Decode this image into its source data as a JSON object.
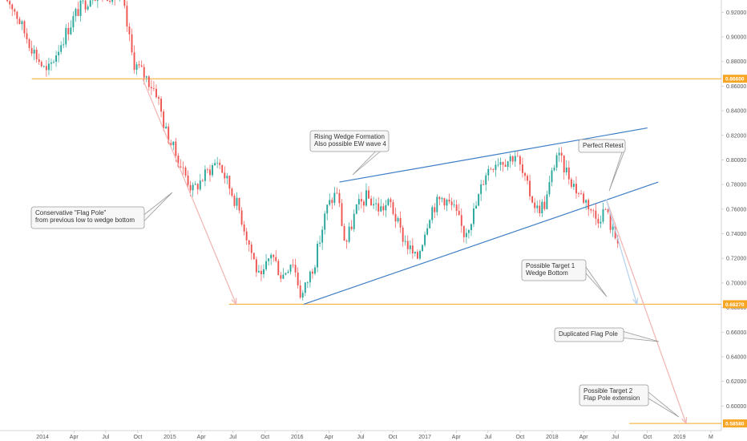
{
  "chart_data": {
    "type": "candlestick",
    "y_axis": {
      "position": "right",
      "range": [
        0.58,
        0.93
      ],
      "ticks": [
        "0.92000",
        "0.90000",
        "0.88000",
        "0.86000",
        "0.84000",
        "0.82000",
        "0.80000",
        "0.78000",
        "0.76000",
        "0.74000",
        "0.72000",
        "0.70000",
        "0.68000",
        "0.66000",
        "0.64000",
        "0.62000",
        "0.60000",
        "0.58000"
      ]
    },
    "x_axis": {
      "range": [
        "2013-09-01",
        "2019-05-01"
      ],
      "ticks": [
        {
          "label": "2014",
          "date": "2014-01-01"
        },
        {
          "label": "Apr",
          "date": "2014-04-01"
        },
        {
          "label": "Jul",
          "date": "2014-07-01"
        },
        {
          "label": "Oct",
          "date": "2014-10-01"
        },
        {
          "label": "2015",
          "date": "2015-01-01"
        },
        {
          "label": "Apr",
          "date": "2015-04-01"
        },
        {
          "label": "Jul",
          "date": "2015-07-01"
        },
        {
          "label": "Oct",
          "date": "2015-10-01"
        },
        {
          "label": "2016",
          "date": "2016-01-01"
        },
        {
          "label": "Apr",
          "date": "2016-04-01"
        },
        {
          "label": "Jul",
          "date": "2016-07-01"
        },
        {
          "label": "Oct",
          "date": "2016-10-01"
        },
        {
          "label": "2017",
          "date": "2017-01-01"
        },
        {
          "label": "Apr",
          "date": "2017-04-01"
        },
        {
          "label": "Jul",
          "date": "2017-07-01"
        },
        {
          "label": "Oct",
          "date": "2017-10-01"
        },
        {
          "label": "2018",
          "date": "2018-01-01"
        },
        {
          "label": "Apr",
          "date": "2018-04-01"
        },
        {
          "label": "Jul",
          "date": "2018-07-01"
        },
        {
          "label": "Oct",
          "date": "2018-10-01"
        },
        {
          "label": "2019",
          "date": "2019-01-01"
        },
        {
          "label": "M",
          "date": "2019-04-01"
        }
      ]
    },
    "price_path": [
      [
        "2013-09-15",
        0.935
      ],
      [
        "2013-10-15",
        0.925
      ],
      [
        "2013-11-15",
        0.905
      ],
      [
        "2013-12-15",
        0.888
      ],
      [
        "2014-01-20",
        0.87
      ],
      [
        "2014-03-01",
        0.895
      ],
      [
        "2014-04-15",
        0.92
      ],
      [
        "2014-06-01",
        0.935
      ],
      [
        "2014-07-15",
        0.935
      ],
      [
        "2014-08-25",
        0.93
      ],
      [
        "2014-09-25",
        0.88
      ],
      [
        "2014-11-01",
        0.867
      ],
      [
        "2014-12-01",
        0.855
      ],
      [
        "2014-12-25",
        0.825
      ],
      [
        "2015-02-01",
        0.8
      ],
      [
        "2015-03-15",
        0.775
      ],
      [
        "2015-04-25",
        0.79
      ],
      [
        "2015-05-25",
        0.8
      ],
      [
        "2015-06-25",
        0.78
      ],
      [
        "2015-07-25",
        0.76
      ],
      [
        "2015-08-25",
        0.73
      ],
      [
        "2015-09-25",
        0.7
      ],
      [
        "2015-10-25",
        0.725
      ],
      [
        "2015-11-25",
        0.705
      ],
      [
        "2015-12-25",
        0.72
      ],
      [
        "2016-01-20",
        0.688
      ],
      [
        "2016-03-01",
        0.72
      ],
      [
        "2016-04-01",
        0.76
      ],
      [
        "2016-05-01",
        0.775
      ],
      [
        "2016-05-25",
        0.73
      ],
      [
        "2016-06-25",
        0.76
      ],
      [
        "2016-07-25",
        0.77
      ],
      [
        "2016-09-01",
        0.76
      ],
      [
        "2016-10-01",
        0.765
      ],
      [
        "2016-11-01",
        0.74
      ],
      [
        "2016-12-15",
        0.718
      ],
      [
        "2017-01-25",
        0.76
      ],
      [
        "2017-03-01",
        0.77
      ],
      [
        "2017-04-01",
        0.76
      ],
      [
        "2017-05-01",
        0.74
      ],
      [
        "2017-06-01",
        0.76
      ],
      [
        "2017-07-01",
        0.79
      ],
      [
        "2017-08-01",
        0.8
      ],
      [
        "2017-09-01",
        0.8
      ],
      [
        "2017-09-25",
        0.805
      ],
      [
        "2017-10-25",
        0.78
      ],
      [
        "2017-11-25",
        0.76
      ],
      [
        "2017-12-20",
        0.765
      ],
      [
        "2018-01-20",
        0.805
      ],
      [
        "2018-02-20",
        0.79
      ],
      [
        "2018-03-20",
        0.775
      ],
      [
        "2018-04-20",
        0.765
      ],
      [
        "2018-05-15",
        0.752
      ],
      [
        "2018-06-10",
        0.76
      ],
      [
        "2018-06-30",
        0.742
      ],
      [
        "2018-07-10",
        0.737
      ]
    ],
    "horizontal_levels": [
      {
        "label": "0.86600",
        "value": 0.866,
        "from": "2013-12-01"
      },
      {
        "label": "0.68270",
        "value": 0.6827,
        "from": "2015-06-20"
      },
      {
        "label": "0.58580",
        "value": 0.5858,
        "from": "2018-08-10"
      }
    ],
    "trend_lines": [
      {
        "kind": "wedge-upper",
        "from": [
          "2016-05-01",
          0.782
        ],
        "to": [
          "2018-10-01",
          0.826
        ]
      },
      {
        "kind": "wedge-lower",
        "from": [
          "2016-01-20",
          0.6827
        ],
        "to": [
          "2018-11-01",
          0.782
        ]
      }
    ],
    "arrows": [
      {
        "kind": "flag-pole",
        "from": [
          "2014-10-15",
          0.866
        ],
        "to": [
          "2015-07-10",
          0.6827
        ]
      },
      {
        "kind": "duplicated-flag-pole",
        "from": [
          "2018-06-05",
          0.768
        ],
        "to": [
          "2019-01-20",
          0.5858
        ]
      },
      {
        "kind": "target-1",
        "from": [
          "2018-06-05",
          0.768
        ],
        "to": [
          "2018-09-01",
          0.6827
        ]
      }
    ],
    "annotations": [
      {
        "id": "rising-wedge",
        "lines": [
          "Rising Wedge Formation",
          "Also possible EW wave 4"
        ]
      },
      {
        "id": "perfect-retest",
        "lines": [
          "Perfect Retest"
        ]
      },
      {
        "id": "flag-pole",
        "lines": [
          "Conservative \"Flag Pole\"",
          "from previous low to wedge bottom"
        ]
      },
      {
        "id": "target-1",
        "lines": [
          "Possible Target 1",
          "Wedge Bottom"
        ]
      },
      {
        "id": "duplicated",
        "lines": [
          "Duplicated Flag Pole"
        ]
      },
      {
        "id": "target-2",
        "lines": [
          "Possible Target 2",
          "Flap Pole extension"
        ]
      }
    ],
    "colors": {
      "up": "#26a69a",
      "down": "#ef5350",
      "level": "#f7a623",
      "wedge": "#3d7ec6",
      "arrow_pink": "#f2b8b5",
      "arrow_blue": "#b9d3ee"
    },
    "grid": false
  }
}
